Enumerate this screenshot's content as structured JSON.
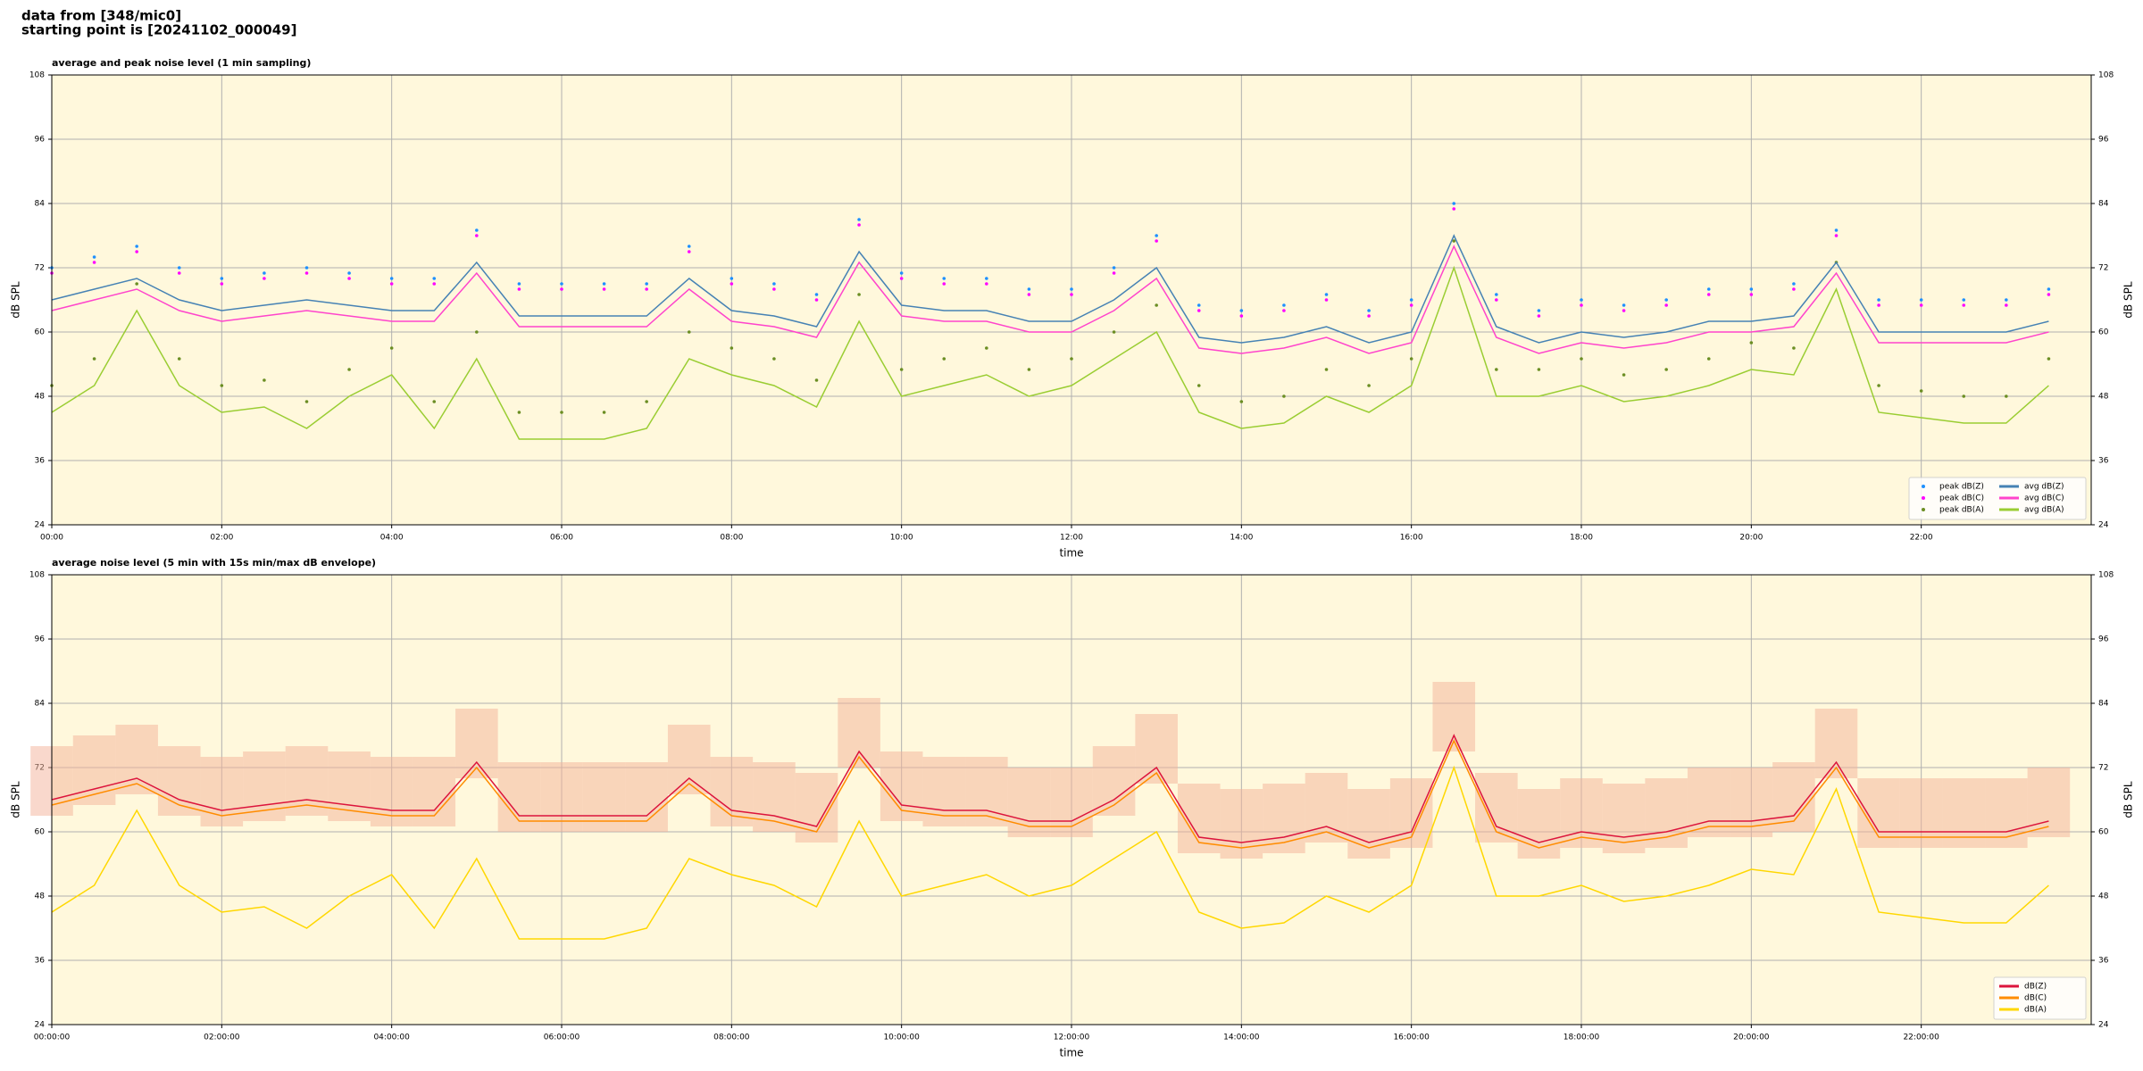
{
  "suptitle": [
    "data from [348/mic0]",
    "starting point is [20241102_000049]"
  ],
  "chart_data": [
    {
      "type": "line",
      "title": "average and peak noise level (1 min sampling)",
      "xlabel": "time",
      "ylabel": "dB SPL",
      "x": [
        "00:00",
        "00:30",
        "01:00",
        "01:30",
        "02:00",
        "02:30",
        "03:00",
        "03:30",
        "04:00",
        "04:30",
        "05:00",
        "05:30",
        "06:00",
        "06:30",
        "07:00",
        "07:30",
        "08:00",
        "08:30",
        "09:00",
        "09:30",
        "10:00",
        "10:30",
        "11:00",
        "11:30",
        "12:00",
        "12:30",
        "13:00",
        "13:30",
        "14:00",
        "14:30",
        "15:00",
        "15:30",
        "16:00",
        "16:30",
        "17:00",
        "17:30",
        "18:00",
        "18:30",
        "19:00",
        "19:30",
        "20:00",
        "20:30",
        "21:00",
        "21:30",
        "22:00",
        "22:30",
        "23:00",
        "23:30"
      ],
      "xlim": [
        "00:00",
        "24:00"
      ],
      "xticks": [
        "00:00",
        "02:00",
        "04:00",
        "06:00",
        "08:00",
        "10:00",
        "12:00",
        "14:00",
        "16:00",
        "18:00",
        "20:00",
        "22:00"
      ],
      "ylim": [
        24,
        108
      ],
      "yticks": [
        24,
        36,
        48,
        60,
        72,
        84,
        96,
        108
      ],
      "grid": true,
      "legend": "lower right",
      "series": [
        {
          "name": "peak dB(Z)",
          "type": "scatter",
          "color": "#1e90ff",
          "values": [
            72,
            74,
            76,
            72,
            70,
            71,
            72,
            71,
            70,
            70,
            79,
            69,
            69,
            69,
            69,
            76,
            70,
            69,
            67,
            81,
            71,
            70,
            70,
            68,
            68,
            72,
            78,
            65,
            64,
            65,
            67,
            64,
            66,
            84,
            67,
            64,
            66,
            65,
            66,
            68,
            68,
            69,
            79,
            66,
            66,
            66,
            66,
            68
          ]
        },
        {
          "name": "peak dB(C)",
          "type": "scatter",
          "color": "#ff00ff",
          "values": [
            71,
            73,
            75,
            71,
            69,
            70,
            71,
            70,
            69,
            69,
            78,
            68,
            68,
            68,
            68,
            75,
            69,
            68,
            66,
            80,
            70,
            69,
            69,
            67,
            67,
            71,
            77,
            64,
            63,
            64,
            66,
            63,
            65,
            83,
            66,
            63,
            65,
            64,
            65,
            67,
            67,
            68,
            78,
            65,
            65,
            65,
            65,
            67
          ]
        },
        {
          "name": "peak dB(A)",
          "type": "scatter",
          "color": "#6b8e23",
          "values": [
            50,
            55,
            69,
            55,
            50,
            51,
            47,
            53,
            57,
            47,
            60,
            45,
            45,
            45,
            47,
            60,
            57,
            55,
            51,
            67,
            53,
            55,
            57,
            53,
            55,
            60,
            65,
            50,
            47,
            48,
            53,
            50,
            55,
            77,
            53,
            53,
            55,
            52,
            53,
            55,
            58,
            57,
            73,
            50,
            49,
            48,
            48,
            55
          ]
        },
        {
          "name": "avg dB(Z)",
          "type": "line",
          "color": "#4682b4",
          "values": [
            66,
            68,
            70,
            66,
            64,
            65,
            66,
            65,
            64,
            64,
            73,
            63,
            63,
            63,
            63,
            70,
            64,
            63,
            61,
            75,
            65,
            64,
            64,
            62,
            62,
            66,
            72,
            59,
            58,
            59,
            61,
            58,
            60,
            78,
            61,
            58,
            60,
            59,
            60,
            62,
            62,
            63,
            73,
            60,
            60,
            60,
            60,
            62
          ]
        },
        {
          "name": "avg dB(C)",
          "type": "line",
          "color": "#ff44cc",
          "values": [
            64,
            66,
            68,
            64,
            62,
            63,
            64,
            63,
            62,
            62,
            71,
            61,
            61,
            61,
            61,
            68,
            62,
            61,
            59,
            73,
            63,
            62,
            62,
            60,
            60,
            64,
            70,
            57,
            56,
            57,
            59,
            56,
            58,
            76,
            59,
            56,
            58,
            57,
            58,
            60,
            60,
            61,
            71,
            58,
            58,
            58,
            58,
            60
          ]
        },
        {
          "name": "avg dB(A)",
          "type": "line",
          "color": "#9acd32",
          "values": [
            45,
            50,
            64,
            50,
            45,
            46,
            42,
            48,
            52,
            42,
            55,
            40,
            40,
            40,
            42,
            55,
            52,
            50,
            46,
            62,
            48,
            50,
            52,
            48,
            50,
            55,
            60,
            45,
            42,
            43,
            48,
            45,
            50,
            72,
            48,
            48,
            50,
            47,
            48,
            50,
            53,
            52,
            68,
            45,
            44,
            43,
            43,
            50
          ]
        }
      ]
    },
    {
      "type": "line",
      "title": "average noise level (5 min with 15s min/max dB envelope)",
      "xlabel": "time",
      "ylabel": "dB SPL",
      "x": [
        "00:00:00",
        "00:30:00",
        "01:00:00",
        "01:30:00",
        "02:00:00",
        "02:30:00",
        "03:00:00",
        "03:30:00",
        "04:00:00",
        "04:30:00",
        "05:00:00",
        "05:30:00",
        "06:00:00",
        "06:30:00",
        "07:00:00",
        "07:30:00",
        "08:00:00",
        "08:30:00",
        "09:00:00",
        "09:30:00",
        "10:00:00",
        "10:30:00",
        "11:00:00",
        "11:30:00",
        "12:00:00",
        "12:30:00",
        "13:00:00",
        "13:30:00",
        "14:00:00",
        "14:30:00",
        "15:00:00",
        "15:30:00",
        "16:00:00",
        "16:30:00",
        "17:00:00",
        "17:30:00",
        "18:00:00",
        "18:30:00",
        "19:00:00",
        "19:30:00",
        "20:00:00",
        "20:30:00",
        "21:00:00",
        "21:30:00",
        "22:00:00",
        "22:30:00",
        "23:00:00",
        "23:30:00"
      ],
      "xlim": [
        "00:00:00",
        "24:00:00"
      ],
      "xticks": [
        "00:00:00",
        "02:00:00",
        "04:00:00",
        "06:00:00",
        "08:00:00",
        "10:00:00",
        "12:00:00",
        "14:00:00",
        "16:00:00",
        "18:00:00",
        "20:00:00",
        "22:00:00"
      ],
      "ylim": [
        24,
        108
      ],
      "yticks": [
        24,
        36,
        48,
        60,
        72,
        84,
        96,
        108
      ],
      "grid": true,
      "legend": "lower right",
      "envelope": {
        "color": "#f4b39a",
        "lower": [
          63,
          65,
          67,
          63,
          61,
          62,
          63,
          62,
          61,
          61,
          70,
          60,
          60,
          60,
          60,
          67,
          61,
          60,
          58,
          72,
          62,
          61,
          61,
          59,
          59,
          63,
          69,
          56,
          55,
          56,
          58,
          55,
          57,
          75,
          58,
          55,
          57,
          56,
          57,
          59,
          59,
          60,
          70,
          57,
          57,
          57,
          57,
          59
        ],
        "upper": [
          76,
          78,
          80,
          76,
          74,
          75,
          76,
          75,
          74,
          74,
          83,
          73,
          73,
          73,
          73,
          80,
          74,
          73,
          71,
          85,
          75,
          74,
          74,
          72,
          72,
          76,
          82,
          69,
          68,
          69,
          71,
          68,
          70,
          88,
          71,
          68,
          70,
          69,
          70,
          72,
          72,
          73,
          83,
          70,
          70,
          70,
          70,
          72
        ]
      },
      "series": [
        {
          "name": "dB(Z)",
          "type": "line",
          "color": "#dc143c",
          "values": [
            66,
            68,
            70,
            66,
            64,
            65,
            66,
            65,
            64,
            64,
            73,
            63,
            63,
            63,
            63,
            70,
            64,
            63,
            61,
            75,
            65,
            64,
            64,
            62,
            62,
            66,
            72,
            59,
            58,
            59,
            61,
            58,
            60,
            78,
            61,
            58,
            60,
            59,
            60,
            62,
            62,
            63,
            73,
            60,
            60,
            60,
            60,
            62
          ]
        },
        {
          "name": "dB(C)",
          "type": "line",
          "color": "#ff8c00",
          "values": [
            65,
            67,
            69,
            65,
            63,
            64,
            65,
            64,
            63,
            63,
            72,
            62,
            62,
            62,
            62,
            69,
            63,
            62,
            60,
            74,
            64,
            63,
            63,
            61,
            61,
            65,
            71,
            58,
            57,
            58,
            60,
            57,
            59,
            77,
            60,
            57,
            59,
            58,
            59,
            61,
            61,
            62,
            72,
            59,
            59,
            59,
            59,
            61
          ]
        },
        {
          "name": "dB(A)",
          "type": "line",
          "color": "#ffd700",
          "values": [
            45,
            50,
            64,
            50,
            45,
            46,
            42,
            48,
            52,
            42,
            55,
            40,
            40,
            40,
            42,
            55,
            52,
            50,
            46,
            62,
            48,
            50,
            52,
            48,
            50,
            55,
            60,
            45,
            42,
            43,
            48,
            45,
            50,
            72,
            48,
            48,
            50,
            47,
            48,
            50,
            53,
            52,
            68,
            45,
            44,
            43,
            43,
            50
          ]
        }
      ]
    }
  ]
}
